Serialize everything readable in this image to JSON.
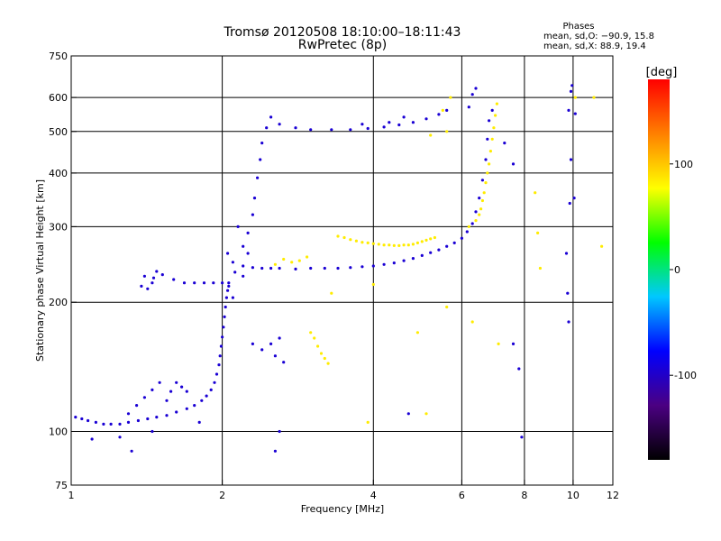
{
  "header": {
    "title_line1": "Tromsø 20120508 18:10:00–18:11:43",
    "title_line2": "RwPretec (8p)",
    "phases_title": "Phases",
    "phases_line1": "mean, sd,O: −90.9, 15.8",
    "phases_line2": "mean, sd,X:  88.9, 19.4"
  },
  "chart_data": {
    "type": "scatter",
    "xlabel": "Frequency [MHz]",
    "ylabel": "Stationary phase Virtual Height [km]",
    "x_scale": "log",
    "y_scale": "log",
    "xlim": [
      1,
      12
    ],
    "ylim": [
      75,
      750
    ],
    "x_ticks": [
      1,
      2,
      4,
      6,
      8,
      10,
      12
    ],
    "x_tick_labels": [
      "1",
      "2",
      "4",
      "6",
      "8",
      "10",
      "12"
    ],
    "y_ticks": [
      75,
      100,
      200,
      300,
      400,
      500,
      600,
      750
    ],
    "y_tick_labels": [
      "75",
      "100",
      "200",
      "300",
      "400",
      "500",
      "600",
      "750"
    ],
    "grid_x": [
      2,
      4,
      6,
      8,
      10
    ],
    "grid_y": [
      100,
      200,
      300,
      400,
      500,
      600
    ],
    "grid": true,
    "colorbar": {
      "label": "[deg]",
      "range": [
        -180,
        180
      ],
      "ticks": [
        100,
        0,
        -100
      ],
      "tick_labels": [
        "100",
        "0",
        "-100"
      ],
      "colors": [
        "#000000",
        "#4b0082",
        "#0000ff",
        "#00c8ff",
        "#00ff00",
        "#ffff00",
        "#ff8000",
        "#ff0000"
      ]
    },
    "series": [
      {
        "trace": "O",
        "phase_deg": -95,
        "points": [
          [
            1.02,
            108
          ],
          [
            1.05,
            107
          ],
          [
            1.08,
            106
          ],
          [
            1.12,
            105
          ],
          [
            1.16,
            104
          ],
          [
            1.2,
            104
          ],
          [
            1.25,
            104
          ],
          [
            1.3,
            105
          ],
          [
            1.36,
            106
          ],
          [
            1.42,
            107
          ],
          [
            1.48,
            108
          ],
          [
            1.55,
            109
          ],
          [
            1.62,
            111
          ],
          [
            1.7,
            113
          ],
          [
            1.76,
            115
          ],
          [
            1.82,
            118
          ],
          [
            1.86,
            121
          ],
          [
            1.9,
            125
          ],
          [
            1.93,
            130
          ],
          [
            1.95,
            136
          ],
          [
            1.97,
            143
          ],
          [
            1.98,
            150
          ],
          [
            1.99,
            158
          ],
          [
            2.0,
            166
          ],
          [
            2.01,
            175
          ],
          [
            2.02,
            185
          ],
          [
            2.03,
            195
          ],
          [
            2.04,
            205
          ],
          [
            2.05,
            213
          ],
          [
            2.06,
            218
          ],
          [
            1.55,
            118
          ],
          [
            1.58,
            124
          ],
          [
            1.62,
            130
          ],
          [
            1.66,
            127
          ],
          [
            1.7,
            124
          ],
          [
            1.5,
            130
          ],
          [
            1.45,
            125
          ],
          [
            1.4,
            120
          ],
          [
            1.35,
            115
          ],
          [
            1.3,
            110
          ],
          [
            1.4,
            230
          ],
          [
            1.46,
            228
          ],
          [
            1.52,
            232
          ],
          [
            1.6,
            226
          ],
          [
            1.68,
            222
          ],
          [
            1.76,
            222
          ],
          [
            1.84,
            222
          ],
          [
            1.92,
            222
          ],
          [
            2.0,
            222
          ],
          [
            2.06,
            222
          ],
          [
            1.45,
            222
          ],
          [
            1.42,
            215
          ],
          [
            1.48,
            236
          ],
          [
            1.38,
            218
          ],
          [
            2.1,
            248
          ],
          [
            2.2,
            243
          ],
          [
            2.3,
            241
          ],
          [
            2.4,
            240
          ],
          [
            2.5,
            240
          ],
          [
            2.6,
            240
          ],
          [
            2.8,
            239
          ],
          [
            3.0,
            240
          ],
          [
            3.2,
            240
          ],
          [
            3.4,
            240
          ],
          [
            3.6,
            241
          ],
          [
            3.8,
            242
          ],
          [
            4.0,
            243
          ],
          [
            4.2,
            245
          ],
          [
            4.4,
            247
          ],
          [
            4.6,
            250
          ],
          [
            4.8,
            253
          ],
          [
            5.0,
            257
          ],
          [
            5.2,
            261
          ],
          [
            5.4,
            265
          ],
          [
            5.6,
            270
          ],
          [
            5.8,
            275
          ],
          [
            6.0,
            282
          ],
          [
            6.15,
            292
          ],
          [
            6.3,
            305
          ],
          [
            6.4,
            325
          ],
          [
            6.5,
            350
          ],
          [
            6.6,
            385
          ],
          [
            6.7,
            430
          ],
          [
            6.75,
            480
          ],
          [
            6.8,
            530
          ],
          [
            2.2,
            270
          ],
          [
            2.25,
            290
          ],
          [
            2.3,
            320
          ],
          [
            2.32,
            350
          ],
          [
            2.35,
            390
          ],
          [
            2.38,
            430
          ],
          [
            2.4,
            470
          ],
          [
            2.45,
            510
          ],
          [
            2.5,
            540
          ],
          [
            2.6,
            520
          ],
          [
            2.8,
            510
          ],
          [
            3.0,
            505
          ],
          [
            3.3,
            505
          ],
          [
            3.6,
            505
          ],
          [
            3.9,
            508
          ],
          [
            4.2,
            512
          ],
          [
            4.5,
            518
          ],
          [
            4.8,
            525
          ],
          [
            5.1,
            535
          ],
          [
            5.4,
            548
          ],
          [
            5.6,
            560
          ],
          [
            3.8,
            520
          ],
          [
            4.3,
            525
          ],
          [
            4.6,
            540
          ],
          [
            2.15,
            300
          ],
          [
            2.2,
            230
          ],
          [
            2.25,
            260
          ],
          [
            2.1,
            205
          ],
          [
            2.12,
            235
          ],
          [
            2.05,
            260
          ],
          [
            2.3,
            160
          ],
          [
            2.4,
            155
          ],
          [
            2.5,
            160
          ],
          [
            2.6,
            165
          ],
          [
            2.55,
            150
          ],
          [
            2.65,
            145
          ],
          [
            6.2,
            570
          ],
          [
            6.3,
            610
          ],
          [
            6.4,
            630
          ],
          [
            6.9,
            560
          ],
          [
            7.3,
            470
          ],
          [
            7.6,
            420
          ],
          [
            9.8,
            560
          ],
          [
            9.9,
            430
          ],
          [
            9.85,
            340
          ],
          [
            9.7,
            260
          ],
          [
            9.75,
            210
          ],
          [
            9.8,
            180
          ],
          [
            9.9,
            620
          ],
          [
            9.95,
            640
          ],
          [
            10.1,
            550
          ],
          [
            10.05,
            350
          ],
          [
            7.8,
            140
          ],
          [
            7.6,
            160
          ],
          [
            1.1,
            96
          ],
          [
            1.25,
            97
          ],
          [
            1.32,
            90
          ],
          [
            1.45,
            100
          ],
          [
            1.8,
            105
          ],
          [
            2.6,
            100
          ],
          [
            2.55,
            90
          ],
          [
            4.7,
            110
          ],
          [
            7.9,
            97
          ]
        ]
      },
      {
        "trace": "X",
        "phase_deg": 85,
        "points": [
          [
            3.4,
            285
          ],
          [
            3.5,
            283
          ],
          [
            3.6,
            280
          ],
          [
            3.7,
            278
          ],
          [
            3.8,
            276
          ],
          [
            3.9,
            275
          ],
          [
            4.0,
            274
          ],
          [
            4.1,
            273
          ],
          [
            4.2,
            272
          ],
          [
            4.3,
            272
          ],
          [
            4.4,
            271
          ],
          [
            4.5,
            271
          ],
          [
            4.6,
            272
          ],
          [
            4.7,
            272
          ],
          [
            4.8,
            273
          ],
          [
            4.9,
            275
          ],
          [
            5.0,
            277
          ],
          [
            5.1,
            279
          ],
          [
            5.2,
            281
          ],
          [
            5.3,
            283
          ],
          [
            6.2,
            300
          ],
          [
            6.4,
            310
          ],
          [
            6.5,
            320
          ],
          [
            6.55,
            330
          ],
          [
            6.6,
            345
          ],
          [
            6.65,
            360
          ],
          [
            6.7,
            380
          ],
          [
            6.75,
            400
          ],
          [
            6.8,
            420
          ],
          [
            6.85,
            450
          ],
          [
            6.9,
            480
          ],
          [
            6.95,
            510
          ],
          [
            7.0,
            545
          ],
          [
            7.05,
            580
          ],
          [
            3.0,
            170
          ],
          [
            3.05,
            165
          ],
          [
            3.1,
            158
          ],
          [
            3.15,
            152
          ],
          [
            3.2,
            148
          ],
          [
            3.25,
            144
          ],
          [
            2.55,
            245
          ],
          [
            2.65,
            252
          ],
          [
            2.75,
            248
          ],
          [
            2.85,
            250
          ],
          [
            2.95,
            255
          ],
          [
            3.3,
            210
          ],
          [
            4.0,
            220
          ],
          [
            5.2,
            490
          ],
          [
            5.6,
            500
          ],
          [
            5.5,
            560
          ],
          [
            5.7,
            600
          ],
          [
            5.6,
            195
          ],
          [
            6.3,
            180
          ],
          [
            7.1,
            160
          ],
          [
            8.4,
            360
          ],
          [
            8.5,
            290
          ],
          [
            8.6,
            240
          ],
          [
            10.1,
            600
          ],
          [
            11.0,
            600
          ],
          [
            11.4,
            270
          ],
          [
            4.9,
            170
          ],
          [
            5.1,
            110
          ],
          [
            3.9,
            105
          ]
        ]
      }
    ]
  }
}
